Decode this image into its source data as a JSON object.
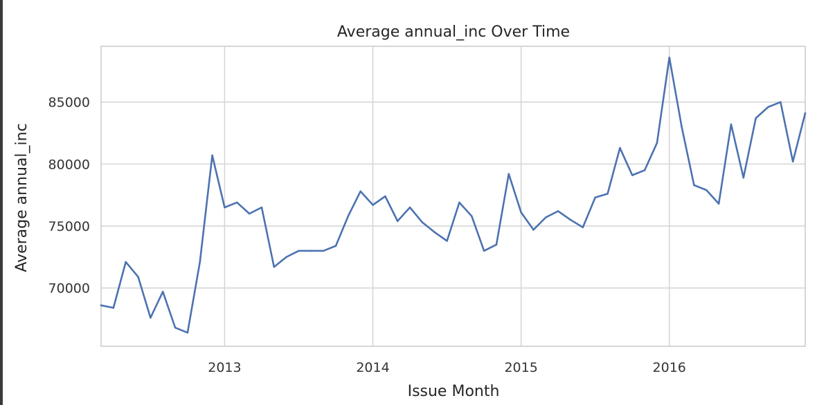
{
  "chart_data": {
    "type": "line",
    "title": "Average annual_inc Over Time",
    "xlabel": "Issue Month",
    "ylabel": "Average annual_inc",
    "x_ticks": [
      "2013",
      "2014",
      "2015",
      "2016"
    ],
    "y_ticks": [
      70000,
      75000,
      80000,
      85000
    ],
    "ylim": [
      65300,
      89500
    ],
    "xlim": [
      "2012-03",
      "2016-12"
    ],
    "grid": true,
    "series": [
      {
        "color": "#4c72b0",
        "x": [
          "2012-03",
          "2012-04",
          "2012-05",
          "2012-06",
          "2012-07",
          "2012-08",
          "2012-09",
          "2012-10",
          "2012-11",
          "2012-12",
          "2013-01",
          "2013-02",
          "2013-03",
          "2013-04",
          "2013-05",
          "2013-06",
          "2013-07",
          "2013-08",
          "2013-09",
          "2013-10",
          "2013-11",
          "2013-12",
          "2014-01",
          "2014-02",
          "2014-03",
          "2014-04",
          "2014-05",
          "2014-06",
          "2014-07",
          "2014-08",
          "2014-09",
          "2014-10",
          "2014-11",
          "2014-12",
          "2015-01",
          "2015-02",
          "2015-03",
          "2015-04",
          "2015-05",
          "2015-06",
          "2015-07",
          "2015-08",
          "2015-09",
          "2015-10",
          "2015-11",
          "2015-12",
          "2016-01",
          "2016-02",
          "2016-03",
          "2016-04",
          "2016-05",
          "2016-06",
          "2016-07",
          "2016-08",
          "2016-09",
          "2016-10",
          "2016-11",
          "2016-12"
        ],
        "values": [
          68600,
          68400,
          72100,
          70900,
          67600,
          69700,
          66800,
          66400,
          72100,
          80700,
          76500,
          76900,
          76000,
          76500,
          71700,
          72500,
          73000,
          73000,
          73000,
          73400,
          75800,
          77800,
          76700,
          77400,
          75400,
          76500,
          75300,
          74500,
          73800,
          76900,
          75800,
          73000,
          73500,
          79200,
          76100,
          74700,
          75700,
          76200,
          75500,
          74900,
          77300,
          77600,
          81300,
          79100,
          79500,
          81700,
          88600,
          83000,
          78300,
          77900,
          76800,
          83200,
          78900,
          83700,
          84600,
          85000,
          80200,
          84100
        ]
      }
    ]
  }
}
